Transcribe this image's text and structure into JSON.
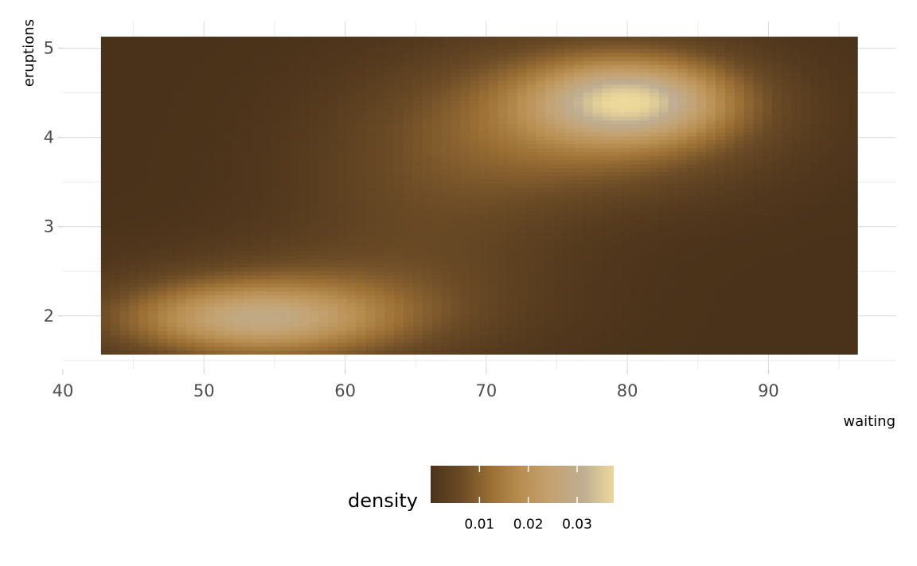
{
  "chart_data": {
    "type": "heatmap",
    "title": "",
    "xlabel": "waiting",
    "ylabel": "eruptions",
    "x_ticks": [
      40,
      50,
      60,
      70,
      80,
      90
    ],
    "y_ticks": [
      2,
      3,
      4,
      5
    ],
    "xlim": [
      40,
      99
    ],
    "ylim": [
      1.4,
      5.3
    ],
    "grid": true,
    "tile_x_range": [
      42.7,
      96.3
    ],
    "tile_y_range": [
      1.57,
      5.13
    ],
    "density_peaks": [
      {
        "waiting": 80.3,
        "eruptions": 4.42,
        "density": 0.037
      },
      {
        "waiting": 53.5,
        "eruptions": 1.95,
        "density": 0.028
      },
      {
        "waiting": 70.0,
        "eruptions": 3.3,
        "density": 0.006
      }
    ],
    "legend": {
      "title": "density",
      "position": "bottom",
      "breaks": [
        0.01,
        0.02,
        0.03
      ],
      "labels": [
        "0.01",
        "0.02",
        "0.03"
      ],
      "range": [
        0.0,
        0.0375
      ],
      "colors": [
        "#4a321a",
        "#6b4b26",
        "#9c7035",
        "#b98f52",
        "#c4a373",
        "#bfae92",
        "#ecd89a"
      ]
    }
  }
}
